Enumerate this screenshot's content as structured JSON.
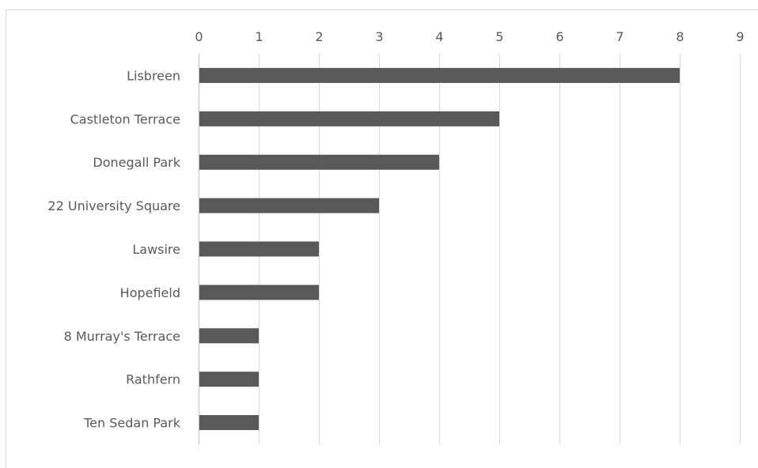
{
  "chart_data": {
    "type": "bar",
    "orientation": "horizontal",
    "categories": [
      "Lisbreen",
      "Castleton Terrace",
      "Donegall Park",
      "22 University Square",
      "Lawsire",
      "Hopefield",
      "8 Murray's Terrace",
      "Rathfern",
      "Ten Sedan Park"
    ],
    "values": [
      8,
      5,
      4,
      3,
      2,
      2,
      1,
      1,
      1
    ],
    "title": "",
    "xlabel": "",
    "ylabel": "",
    "xlim": [
      0,
      9
    ],
    "x_ticks": [
      "0",
      "1",
      "2",
      "3",
      "4",
      "5",
      "6",
      "7",
      "8",
      "9"
    ],
    "x_axis_position": "top",
    "grid": true,
    "legend": "none",
    "bar_color": "#595959",
    "grid_color": "#d9d9d9",
    "text_color": "#595959"
  }
}
